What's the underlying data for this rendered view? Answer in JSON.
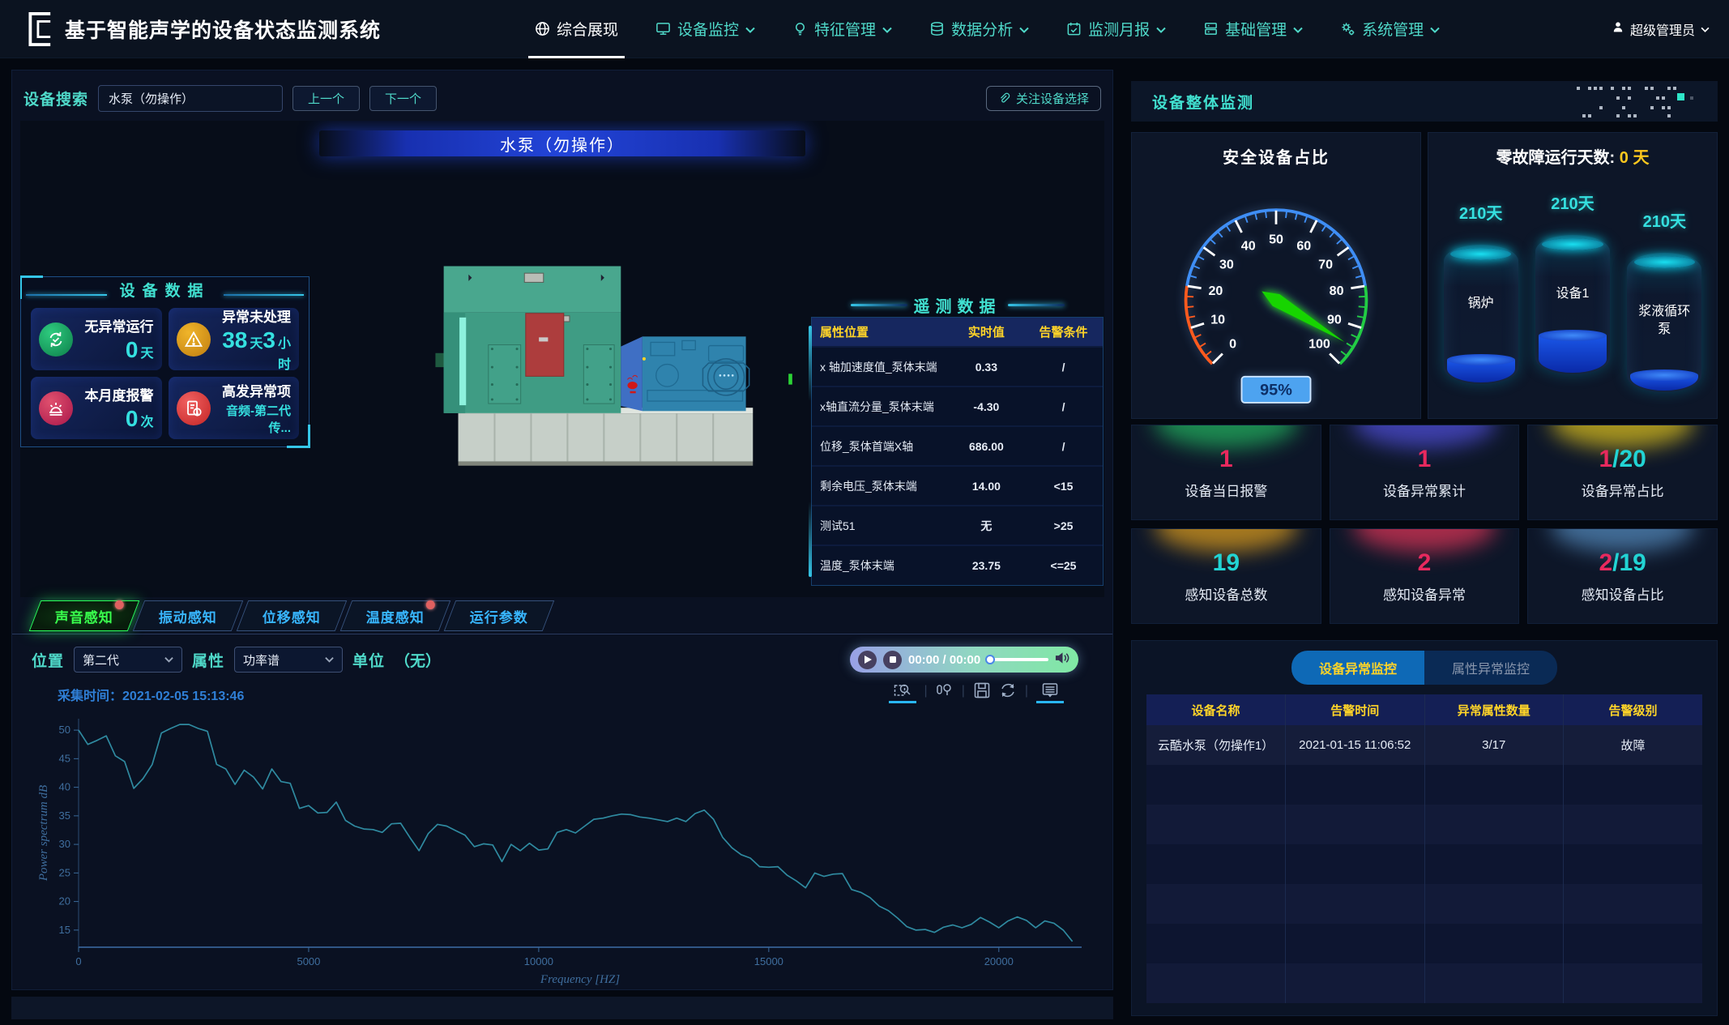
{
  "nav": {
    "title": "基于智能声学的设备状态监测系统",
    "items": [
      {
        "label": "综合展现",
        "icon": "globe",
        "active": true,
        "dropdown": false
      },
      {
        "label": "设备监控",
        "icon": "monitor",
        "active": false,
        "dropdown": true
      },
      {
        "label": "特征管理",
        "icon": "bulb",
        "active": false,
        "dropdown": true
      },
      {
        "label": "数据分析",
        "icon": "database",
        "active": false,
        "dropdown": true
      },
      {
        "label": "监测月报",
        "icon": "calendar",
        "active": false,
        "dropdown": true
      },
      {
        "label": "基础管理",
        "icon": "server",
        "active": false,
        "dropdown": true
      },
      {
        "label": "系统管理",
        "icon": "gears",
        "active": false,
        "dropdown": true
      }
    ],
    "user": "超级管理员"
  },
  "left": {
    "search": {
      "label": "设备搜索",
      "value": "水泵（勿操作）",
      "prev": "上一个",
      "next": "下一个",
      "focus_btn": "关注设备选择"
    },
    "viewport": {
      "title": "水泵（勿操作）"
    },
    "device_data": {
      "title": "设备数据",
      "cards": [
        {
          "name": "无异常运行",
          "icon": "check-cycle",
          "color": "green",
          "parts": [
            {
              "t": "0",
              "big": true
            },
            {
              "t": "天",
              "unit": true
            }
          ]
        },
        {
          "name": "异常未处理",
          "icon": "warning",
          "color": "orange",
          "parts": [
            {
              "t": "38",
              "big": true
            },
            {
              "t": "天",
              "unit": true
            },
            {
              "t": "3",
              "big": true
            },
            {
              "t": "小时",
              "unit": true
            }
          ]
        },
        {
          "name": "本月度报警",
          "icon": "alarm",
          "color": "pink",
          "parts": [
            {
              "t": "0",
              "big": true
            },
            {
              "t": "次",
              "unit": true
            }
          ]
        },
        {
          "name": "高发异常项",
          "icon": "doc-alert",
          "color": "red",
          "parts": [
            {
              "t": "音频-第二代传...",
              "small": true
            }
          ]
        }
      ]
    },
    "telemetry": {
      "title": "遥测数据",
      "headers": [
        "属性位置",
        "实时值",
        "告警条件"
      ],
      "rows": [
        {
          "attr": "x 轴加速度值_泵体末端",
          "value": "0.33",
          "value_color": "blue",
          "cond": "/"
        },
        {
          "attr": "x轴直流分量_泵体末端",
          "value": "-4.30",
          "value_color": "blue",
          "cond": "/"
        },
        {
          "attr": "位移_泵体首端X轴",
          "value": "686.00",
          "value_color": "blue",
          "cond": "/"
        },
        {
          "attr": "剩余电压_泵体末端",
          "value": "14.00",
          "value_color": "red",
          "cond": "<15"
        },
        {
          "attr": "测试51",
          "value": "无",
          "value_color": "white",
          "cond": ">25"
        },
        {
          "attr": "温度_泵体末端",
          "value": "23.75",
          "value_color": "red",
          "cond": "<=25"
        }
      ]
    },
    "tabs": [
      {
        "label": "声音感知",
        "active": true,
        "badge": true
      },
      {
        "label": "振动感知",
        "active": false,
        "badge": false
      },
      {
        "label": "位移感知",
        "active": false,
        "badge": false
      },
      {
        "label": "温度感知",
        "active": false,
        "badge": true
      },
      {
        "label": "运行参数",
        "active": false,
        "badge": false
      }
    ],
    "controls": {
      "pos_label": "位置",
      "pos_value": "第二代",
      "attr_label": "属性",
      "attr_value": "功率谱",
      "unit_label": "单位",
      "unit_value": "（无）"
    },
    "player": {
      "time": "00:00 / 00:00"
    },
    "chart_meta": {
      "capture_label": "采集时间：",
      "capture_time": "2021-02-05 15:13:46"
    }
  },
  "chart_data": {
    "type": "line",
    "xlabel": "Frequency [HZ]",
    "ylabel": "Power spectrum  dB",
    "x_start": 0,
    "x_step": 200,
    "xlim": [
      0,
      21800
    ],
    "ylim": [
      12,
      52
    ],
    "xticks": [
      0,
      5000,
      10000,
      15000,
      20000
    ],
    "yticks": [
      15,
      20,
      25,
      30,
      35,
      40,
      45,
      50
    ],
    "line_color": "#2f8aa0",
    "grid": false,
    "values": [
      50,
      47.5,
      48.2,
      49,
      45.5,
      44.5,
      39.8,
      41.5,
      44,
      49.5,
      50.3,
      51,
      51,
      50.3,
      49.8,
      44,
      43.2,
      40.5,
      43,
      41.8,
      39.7,
      43.2,
      41,
      40.7,
      36.3,
      36.8,
      35.5,
      35.6,
      37.4,
      34.2,
      33.2,
      32.7,
      32.6,
      32.1,
      33.6,
      33.7,
      31.2,
      28.9,
      31.9,
      33.5,
      33.2,
      32.4,
      31.6,
      29.6,
      30.1,
      29.9,
      27,
      30,
      28.9,
      30.2,
      29,
      29.2,
      32.1,
      32.6,
      32,
      33.2,
      34.4,
      34.6,
      35,
      35.3,
      35.2,
      34.8,
      34.6,
      34.3,
      34,
      34.6,
      34,
      35.4,
      36,
      34.4,
      31.2,
      29.4,
      28.2,
      27.6,
      26.1,
      26,
      26.1,
      24.6,
      23.6,
      22.4,
      25,
      24.4,
      24.8,
      24.9,
      22.1,
      21.6,
      20.7,
      19.2,
      18.4,
      17.1,
      15.6,
      15,
      15.1,
      14.6,
      15.5,
      15.9,
      15.4,
      16,
      17.2,
      16.4,
      15.4,
      16.6,
      17.3,
      16.7,
      15.4,
      16.6,
      16.2,
      15,
      13
    ]
  },
  "right": {
    "header": "设备整体监测",
    "gauge": {
      "title": "安全设备占比",
      "value": 95,
      "badge": "95%",
      "min": 0,
      "max": 100,
      "tick_labels": [
        0,
        10,
        20,
        30,
        40,
        50,
        60,
        70,
        80,
        90,
        100
      ],
      "zones": [
        {
          "to": 20,
          "color": "#ff5a1e"
        },
        {
          "to": 80,
          "color": "#3f8ef5"
        },
        {
          "to": 100,
          "color": "#22cc44"
        }
      ],
      "needle_color": "#17d400",
      "badge_bg": "#4da3f0"
    },
    "days": {
      "title": "零故障运行天数:",
      "value": "0",
      "unit": "天",
      "cylinders": [
        {
          "days": "210天",
          "name": "锅炉",
          "level": 16
        },
        {
          "days": "210天",
          "name": "设备1",
          "level": 27
        },
        {
          "days": "210天",
          "name": "浆液循环泵",
          "level": 11
        }
      ]
    },
    "stats": [
      {
        "value": "1",
        "value_color": "pink",
        "suffix": "",
        "label": "设备当日报警",
        "glow": "green"
      },
      {
        "value": "1",
        "value_color": "pink",
        "suffix": "",
        "label": "设备异常累计",
        "glow": "purple"
      },
      {
        "value": "1",
        "value_color": "pink",
        "suffix": "/20",
        "label": "设备异常占比",
        "glow": "yellow"
      },
      {
        "value": "19",
        "value_color": "cyan",
        "suffix": "",
        "label": "感知设备总数",
        "glow": "orange"
      },
      {
        "value": "2",
        "value_color": "pink",
        "suffix": "",
        "label": "感知设备异常",
        "glow": "red"
      },
      {
        "value": "2",
        "value_color": "pink",
        "suffix": "/19",
        "label": "感知设备占比",
        "glow": "steel"
      }
    ],
    "alarm": {
      "tabs": [
        {
          "label": "设备异常监控",
          "active": true
        },
        {
          "label": "属性异常监控",
          "active": false
        }
      ],
      "headers": [
        "设备名称",
        "告警时间",
        "异常属性数量",
        "告警级别"
      ],
      "rows": [
        {
          "name": "云酷水泵（勿操作1）",
          "time": "2021-01-15 11:06:52",
          "count": "3/17",
          "level": "故障"
        }
      ]
    }
  }
}
